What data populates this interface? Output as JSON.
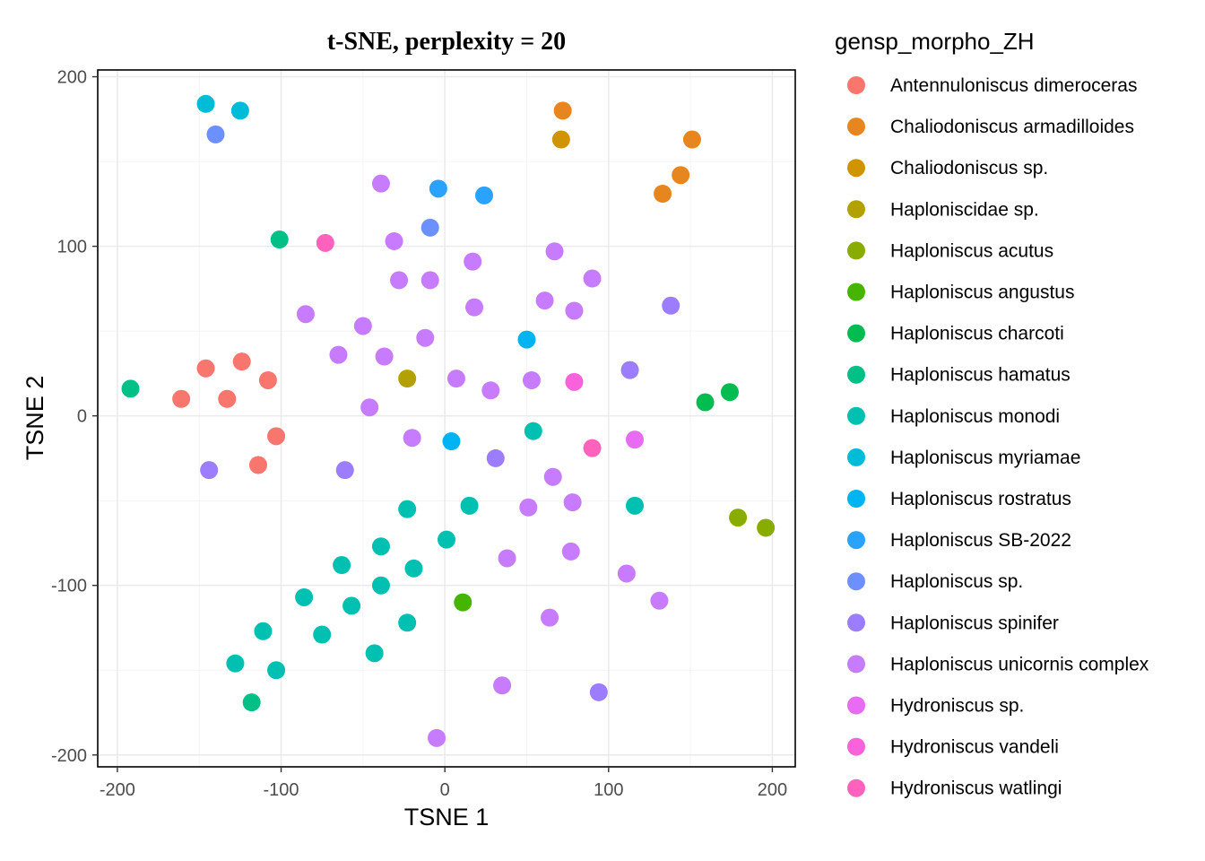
{
  "chart_data": {
    "type": "scatter",
    "title": "t-SNE, perplexity = 20",
    "xlabel": "TSNE 1",
    "ylabel": "TSNE 2",
    "xlim": [
      -212,
      214
    ],
    "ylim": [
      -207,
      204
    ],
    "xticks": [
      -200,
      -100,
      0,
      100,
      200
    ],
    "yticks": [
      -200,
      -100,
      0,
      100,
      200
    ],
    "xtick_labels": [
      "-200",
      "-100",
      "0",
      "100",
      "200"
    ],
    "ytick_labels": [
      "-200",
      "-100",
      "0",
      "100",
      "200"
    ],
    "grid": true,
    "legend_title": "gensp_morpho_ZH",
    "legend_position": "right",
    "series": [
      {
        "name": "Antennuloniscus dimeroceras",
        "color": "#F8766D",
        "points": [
          [
            -161,
            10
          ],
          [
            -146,
            28
          ],
          [
            -133,
            10
          ],
          [
            -124,
            32
          ],
          [
            -108,
            21
          ],
          [
            -103,
            -12
          ],
          [
            -114,
            -29
          ]
        ]
      },
      {
        "name": "Chaliodoniscus armadilloides",
        "color": "#E7851E",
        "points": [
          [
            72,
            180
          ],
          [
            151,
            163
          ],
          [
            144,
            142
          ],
          [
            133,
            131
          ]
        ]
      },
      {
        "name": "Chaliodoniscus sp.",
        "color": "#D09400",
        "points": [
          [
            71,
            163
          ]
        ]
      },
      {
        "name": "Haploniscidae sp.",
        "color": "#B2A100",
        "points": [
          [
            -23,
            22
          ]
        ]
      },
      {
        "name": "Haploniscus acutus",
        "color": "#89AC00",
        "points": [
          [
            179,
            -60
          ],
          [
            196,
            -66
          ]
        ]
      },
      {
        "name": "Haploniscus angustus",
        "color": "#45B500",
        "points": [
          [
            11,
            -110
          ]
        ]
      },
      {
        "name": "Haploniscus charcoti",
        "color": "#00BC51",
        "points": [
          [
            159,
            8
          ],
          [
            174,
            14
          ]
        ]
      },
      {
        "name": "Haploniscus hamatus",
        "color": "#00C087",
        "points": [
          [
            -192,
            16
          ],
          [
            -101,
            104
          ],
          [
            -118,
            -169
          ]
        ]
      },
      {
        "name": "Haploniscus monodi",
        "color": "#00C0B2",
        "points": [
          [
            -23,
            -55
          ],
          [
            15,
            -53
          ],
          [
            -39,
            -77
          ],
          [
            1,
            -73
          ],
          [
            -63,
            -88
          ],
          [
            -19,
            -90
          ],
          [
            -39,
            -100
          ],
          [
            -86,
            -107
          ],
          [
            -57,
            -112
          ],
          [
            -23,
            -122
          ],
          [
            -75,
            -129
          ],
          [
            -111,
            -127
          ],
          [
            -43,
            -140
          ],
          [
            -128,
            -146
          ],
          [
            -103,
            -150
          ],
          [
            54,
            -9
          ],
          [
            116,
            -53
          ]
        ]
      },
      {
        "name": "Haploniscus myriamae",
        "color": "#00BCD6",
        "points": [
          [
            -146,
            184
          ],
          [
            -125,
            180
          ]
        ]
      },
      {
        "name": "Haploniscus rostratus",
        "color": "#00B3F2",
        "points": [
          [
            4,
            -15
          ],
          [
            50,
            45
          ]
        ]
      },
      {
        "name": "Haploniscus SB-2022",
        "color": "#29A3FF",
        "points": [
          [
            -4,
            134
          ],
          [
            24,
            130
          ]
        ]
      },
      {
        "name": "Haploniscus sp.",
        "color": "#6C91FF",
        "points": [
          [
            -140,
            166
          ],
          [
            -9,
            111
          ]
        ]
      },
      {
        "name": "Haploniscus spinifer",
        "color": "#9C7DFF",
        "points": [
          [
            -144,
            -32
          ],
          [
            -61,
            -32
          ],
          [
            31,
            -25
          ],
          [
            113,
            27
          ],
          [
            138,
            65
          ],
          [
            94,
            -163
          ]
        ]
      },
      {
        "name": "Haploniscus unicornis complex",
        "color": "#C77CFF",
        "points": [
          [
            -39,
            137
          ],
          [
            -31,
            103
          ],
          [
            17,
            91
          ],
          [
            67,
            97
          ],
          [
            -28,
            80
          ],
          [
            -9,
            80
          ],
          [
            90,
            81
          ],
          [
            -85,
            60
          ],
          [
            -50,
            53
          ],
          [
            18,
            64
          ],
          [
            61,
            68
          ],
          [
            79,
            62
          ],
          [
            -65,
            36
          ],
          [
            -37,
            35
          ],
          [
            -12,
            46
          ],
          [
            7,
            22
          ],
          [
            28,
            15
          ],
          [
            53,
            21
          ],
          [
            -46,
            5
          ],
          [
            -20,
            -13
          ],
          [
            66,
            -36
          ],
          [
            51,
            -54
          ],
          [
            78,
            -51
          ],
          [
            38,
            -84
          ],
          [
            77,
            -80
          ],
          [
            111,
            -93
          ],
          [
            131,
            -109
          ],
          [
            64,
            -119
          ],
          [
            35,
            -159
          ],
          [
            -5,
            -190
          ]
        ]
      },
      {
        "name": "Hydroniscus sp.",
        "color": "#E76BF3",
        "points": [
          [
            116,
            -14
          ]
        ]
      },
      {
        "name": "Hydroniscus vandeli",
        "color": "#FA62DB",
        "points": [
          [
            79,
            20
          ]
        ]
      },
      {
        "name": "Hydroniscus watlingi",
        "color": "#FF62BC",
        "points": [
          [
            -73,
            102
          ],
          [
            90,
            -19
          ]
        ]
      }
    ]
  }
}
